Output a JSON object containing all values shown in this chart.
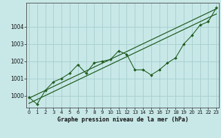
{
  "title": "Graphe pression niveau de la mer (hPa)",
  "bg_color": "#c8e8e8",
  "grid_color": "#aad0d0",
  "line_color": "#1e5c1e",
  "x_data": [
    0,
    1,
    2,
    3,
    4,
    5,
    6,
    7,
    8,
    9,
    10,
    11,
    12,
    13,
    14,
    15,
    16,
    17,
    18,
    19,
    20,
    21,
    22,
    23
  ],
  "y_data": [
    999.9,
    999.5,
    1000.3,
    1000.8,
    1001.0,
    1001.3,
    1001.8,
    1001.3,
    1001.9,
    1002.0,
    1002.1,
    1002.6,
    1002.4,
    1001.5,
    1001.5,
    1001.2,
    1001.5,
    1001.9,
    1002.2,
    1003.0,
    1003.5,
    1004.1,
    1004.3,
    1005.1
  ],
  "trend1_x": [
    0,
    23
  ],
  "trend1_y": [
    999.85,
    1005.05
  ],
  "trend2_x": [
    0,
    23
  ],
  "trend2_y": [
    999.55,
    1004.75
  ],
  "ylim_min": 999.3,
  "ylim_max": 1005.4,
  "xlim_min": -0.3,
  "xlim_max": 23.3,
  "yticks": [
    1000,
    1001,
    1002,
    1003,
    1004
  ],
  "xticks": [
    0,
    1,
    2,
    3,
    4,
    5,
    6,
    7,
    8,
    9,
    10,
    11,
    12,
    13,
    14,
    15,
    16,
    17,
    18,
    19,
    20,
    21,
    22,
    23
  ],
  "xlabel_fontsize": 6.0,
  "tick_fontsize": 5.0,
  "ytick_fontsize": 5.5
}
